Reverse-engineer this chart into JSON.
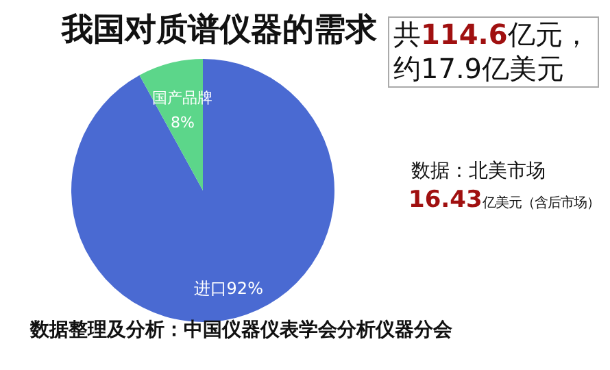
{
  "chart_data": {
    "type": "pie",
    "title": "我国对质谱仪器的需求",
    "categories": [
      "进口",
      "国产品牌"
    ],
    "values": [
      92,
      8
    ],
    "value_labels": [
      "92%",
      "8%"
    ],
    "colors": [
      "#4a6ad2",
      "#5cd68a"
    ],
    "annotations": [
      "共114.6亿元，约17.9亿美元",
      "数据：北美市场",
      "16.43亿美元（含后市场）",
      "数据整理及分析：中国仪器仪表学会分析仪器分会"
    ]
  }
}
